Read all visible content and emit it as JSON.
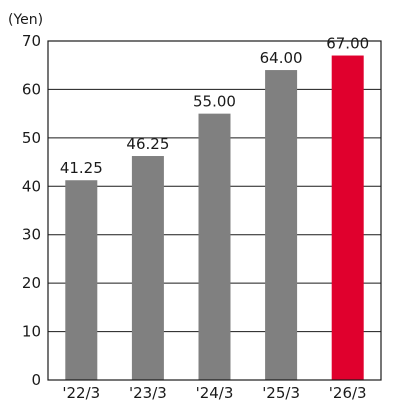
{
  "chart_data": {
    "type": "bar",
    "title": "",
    "xlabel": "",
    "ylabel": "",
    "unit_label": "(Yen)",
    "categories": [
      "'22/3",
      "'23/3",
      "'24/3",
      "'25/3",
      "'26/3"
    ],
    "values": [
      41.25,
      46.25,
      55.0,
      64.0,
      67.0
    ],
    "value_labels": [
      "41.25",
      "46.25",
      "55.00",
      "64.00",
      "67.00"
    ],
    "ylim": [
      0,
      70
    ],
    "yticks": [
      0,
      10,
      20,
      30,
      40,
      50,
      60,
      70
    ],
    "grid": true,
    "legend": "none",
    "bar_colors": [
      "#808080",
      "#808080",
      "#808080",
      "#808080",
      "#e0002d"
    ]
  }
}
